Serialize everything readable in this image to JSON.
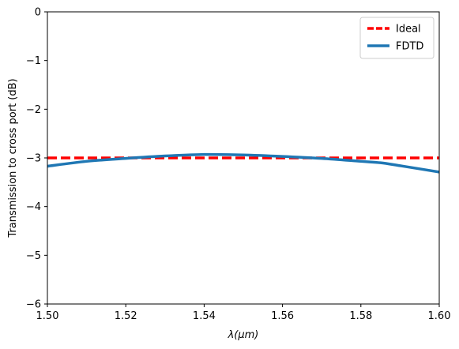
{
  "chart_data": {
    "type": "line",
    "title": "",
    "xlabel": "λ(μm)",
    "ylabel": "Transmission to cross port (dB)",
    "xlim": [
      1.5,
      1.6
    ],
    "ylim": [
      -6,
      0
    ],
    "x_ticks": [
      "1.50",
      "1.52",
      "1.54",
      "1.56",
      "1.58",
      "1.60"
    ],
    "y_ticks": [
      "0",
      "−1",
      "−2",
      "−3",
      "−4",
      "−5",
      "−6"
    ],
    "grid": false,
    "legend_position": "top-right",
    "series": [
      {
        "name": "Ideal",
        "style": "dashed",
        "color": "#ff0000",
        "x": [
          1.5,
          1.6
        ],
        "y": [
          -3.0,
          -3.0
        ]
      },
      {
        "name": "FDTD",
        "style": "solid",
        "color": "#1f77b4",
        "x": [
          1.5,
          1.51,
          1.52,
          1.53,
          1.54,
          1.55,
          1.56,
          1.57,
          1.58,
          1.585,
          1.59,
          1.6
        ],
        "y": [
          -3.17,
          -3.07,
          -3.01,
          -2.96,
          -2.93,
          -2.94,
          -2.97,
          -3.01,
          -3.07,
          -3.1,
          -3.16,
          -3.29
        ]
      }
    ]
  }
}
